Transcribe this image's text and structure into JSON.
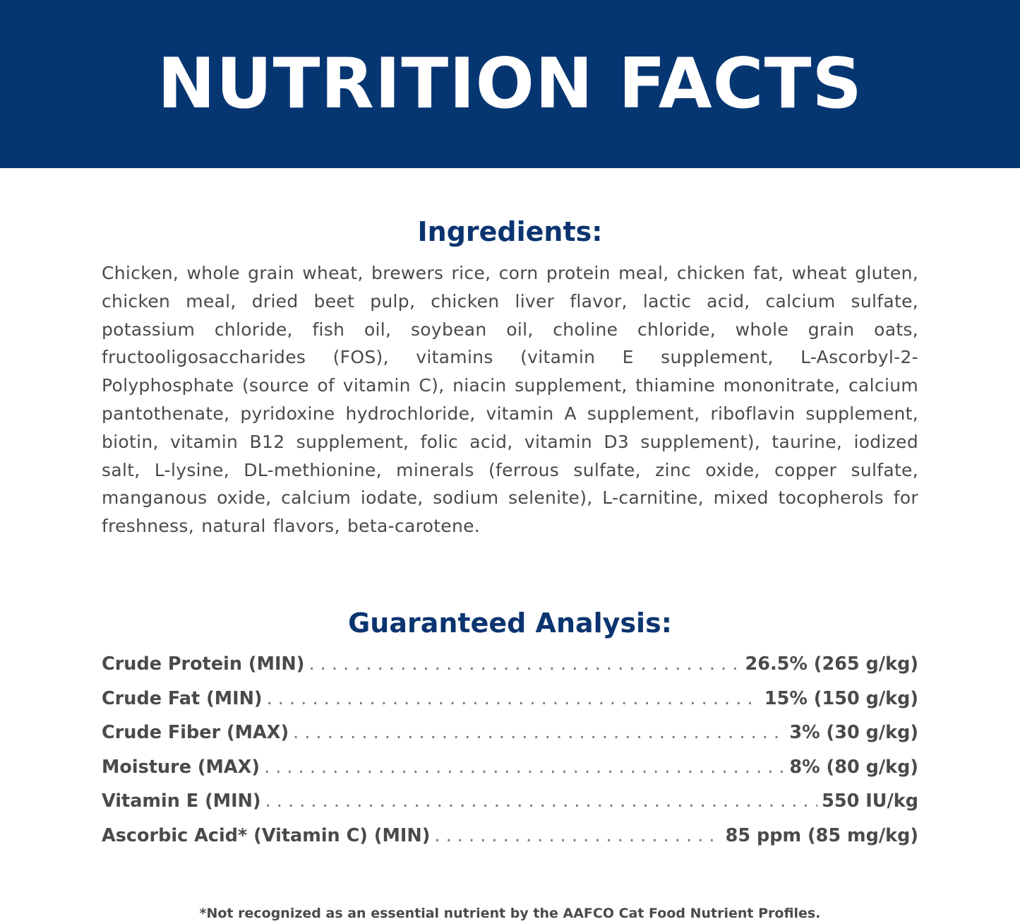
{
  "banner": {
    "title": "NUTRITION FACTS",
    "color": "#063672"
  },
  "ingredients": {
    "heading": "Ingredients:",
    "text": "Chicken, whole grain wheat, brewers rice, corn protein meal, chicken fat, wheat gluten, chicken meal, dried beet pulp, chicken liver flavor, lactic acid, calcium sulfate, potassium chloride, fish oil, soybean oil, choline chloride, whole grain oats, fructooligosaccharides (FOS), vitamins (vitamin E supplement, L-Ascorbyl-2-Polyphosphate (source of vitamin C), niacin supplement, thiamine mononitrate, calcium pantothenate, pyridoxine hydrochloride, vitamin A supplement, riboflavin supplement, biotin, vitamin B12 supplement, folic acid, vitamin D3 supplement), taurine, iodized salt, L-lysine, DL-methionine, minerals (ferrous sulfate, zinc oxide, copper sulfate, manganous oxide, calcium iodate, sodium selenite), L-carnitine, mixed tocopherols for freshness, natural flavors, beta-carotene."
  },
  "analysis": {
    "heading": "Guaranteed Analysis:",
    "rows": [
      {
        "label": "Crude Protein (MIN)",
        "value": "26.5% (265 g/kg)"
      },
      {
        "label": "Crude Fat (MIN)",
        "value": "15% (150 g/kg)"
      },
      {
        "label": "Crude Fiber (MAX)",
        "value": "3% (30 g/kg)"
      },
      {
        "label": "Moisture (MAX)",
        "value": "8% (80 g/kg)"
      },
      {
        "label": "Vitamin E (MIN)",
        "value": "550 IU/kg"
      },
      {
        "label": "Ascorbic Acid* (Vitamin C) (MIN)",
        "value": "85 ppm (85 mg/kg)"
      }
    ]
  },
  "footnote": "*Not recognized as an essential nutrient by the AAFCO Cat Food Nutrient Profiles."
}
